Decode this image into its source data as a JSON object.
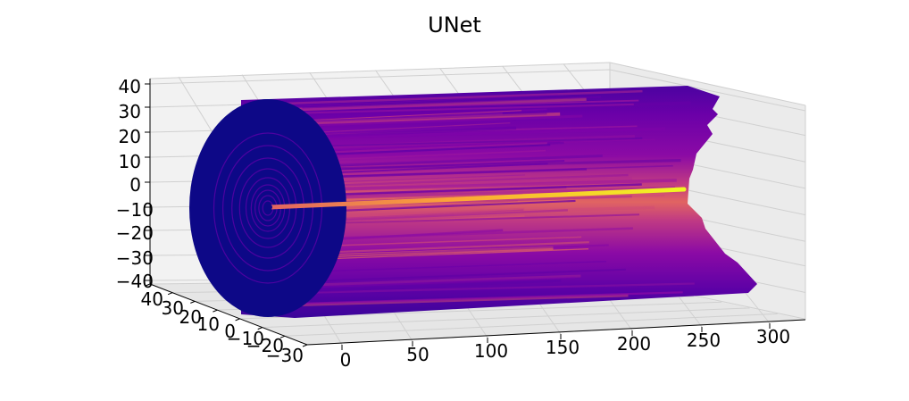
{
  "chart_data": {
    "type": "surface3d",
    "title": "UNet",
    "xlabel": "",
    "ylabel": "",
    "zlabel": "",
    "x_ticks": [
      "0",
      "50",
      "100",
      "150",
      "200",
      "250",
      "300"
    ],
    "y_ticks": [
      "40",
      "30",
      "20",
      "10",
      "0",
      "−10",
      "−20",
      "−30"
    ],
    "z_ticks": [
      "40",
      "30",
      "20",
      "10",
      "0",
      "−10",
      "−20",
      "−30",
      "−40"
    ],
    "xlim": [
      0,
      310
    ],
    "ylim": [
      -30,
      45
    ],
    "zlim": [
      -40,
      40
    ],
    "colormap": "plasma",
    "grid": true,
    "pane_color": "#f2f2f2",
    "surface": {
      "shape": "cylinder",
      "axis": "x",
      "radius_range": [
        0,
        35
      ],
      "x_range": [
        0,
        290
      ],
      "axis_line_color": "#f5f229",
      "outer_color": "#0d0887"
    }
  }
}
